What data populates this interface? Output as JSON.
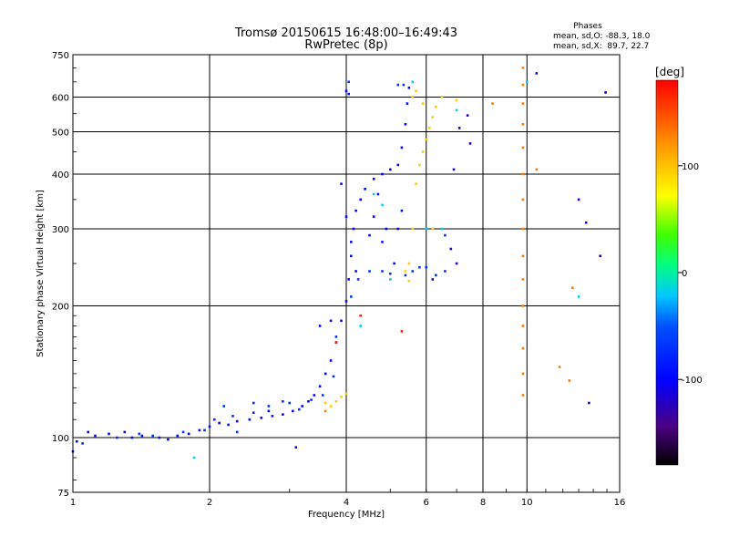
{
  "chart_data": {
    "type": "scatter",
    "title": "Tromsø 20150615 16:48:00–16:49:43",
    "subtitle": "RwPretec (8p)",
    "xlabel": "Frequency [MHz]",
    "ylabel": "Stationary phase Virtual Height [km]",
    "x_scale": "log",
    "y_scale": "log",
    "xlim": [
      1,
      16
    ],
    "ylim": [
      75,
      750
    ],
    "x_ticks": [
      1,
      2,
      4,
      6,
      8,
      10,
      16
    ],
    "x_tick_labels": [
      "1",
      "2",
      "4",
      "6",
      "8",
      "10",
      "16"
    ],
    "y_ticks": [
      75,
      100,
      200,
      300,
      400,
      500,
      600,
      750
    ],
    "y_tick_labels": [
      "75",
      "100",
      "200",
      "300",
      "400",
      "500",
      "600",
      "750"
    ],
    "grid": true,
    "stats": {
      "heading": "Phases",
      "line1": "mean, sd,O: -88.3, 18.0",
      "line2": "mean, sd,X:  89.7, 22.7"
    },
    "colorbar": {
      "label": "[deg]",
      "range": [
        -180,
        180
      ],
      "ticks": [
        100,
        0,
        -100
      ],
      "tick_labels": [
        "100",
        "0",
        "-100"
      ]
    },
    "series": [
      {
        "phase_deg": -95,
        "points": [
          [
            1.0,
            93
          ],
          [
            1.02,
            98
          ],
          [
            1.08,
            103
          ],
          [
            1.12,
            101
          ],
          [
            1.2,
            102
          ],
          [
            1.3,
            103
          ],
          [
            1.35,
            100
          ],
          [
            1.42,
            101
          ],
          [
            1.55,
            100
          ],
          [
            1.62,
            99
          ],
          [
            1.7,
            101
          ],
          [
            1.8,
            102
          ],
          [
            1.9,
            104
          ],
          [
            2.0,
            106
          ],
          [
            2.1,
            108
          ],
          [
            2.2,
            107
          ],
          [
            2.3,
            109
          ],
          [
            2.45,
            110
          ],
          [
            2.6,
            111
          ],
          [
            2.75,
            112
          ],
          [
            2.9,
            113
          ],
          [
            3.05,
            115
          ],
          [
            3.2,
            118
          ],
          [
            3.3,
            121
          ],
          [
            3.4,
            125
          ],
          [
            3.5,
            131
          ],
          [
            3.6,
            140
          ],
          [
            3.7,
            150
          ],
          [
            3.8,
            165
          ],
          [
            3.9,
            185
          ],
          [
            4.0,
            205
          ],
          [
            4.05,
            230
          ],
          [
            4.1,
            260
          ],
          [
            4.15,
            300
          ],
          [
            4.2,
            330
          ],
          [
            4.3,
            350
          ],
          [
            4.4,
            370
          ],
          [
            4.6,
            390
          ],
          [
            4.8,
            400
          ],
          [
            5.0,
            410
          ],
          [
            5.2,
            420
          ],
          [
            5.3,
            460
          ],
          [
            5.4,
            520
          ],
          [
            5.45,
            580
          ],
          [
            5.5,
            630
          ],
          [
            4.0,
            620
          ],
          [
            4.05,
            610
          ],
          [
            3.9,
            380
          ],
          [
            4.0,
            320
          ],
          [
            4.1,
            280
          ],
          [
            4.2,
            240
          ],
          [
            4.5,
            290
          ],
          [
            4.6,
            320
          ],
          [
            4.7,
            360
          ],
          [
            4.8,
            280
          ],
          [
            4.9,
            300
          ],
          [
            5.1,
            250
          ],
          [
            5.2,
            300
          ],
          [
            5.3,
            330
          ],
          [
            3.5,
            180
          ],
          [
            3.7,
            185
          ],
          [
            2.7,
            115
          ],
          [
            3.1,
            95
          ]
        ]
      },
      {
        "phase_deg": -70,
        "points": [
          [
            1.05,
            97
          ],
          [
            1.25,
            100
          ],
          [
            1.5,
            101
          ],
          [
            1.75,
            103
          ],
          [
            1.95,
            104
          ],
          [
            2.05,
            110
          ],
          [
            2.15,
            118
          ],
          [
            2.25,
            112
          ],
          [
            2.5,
            114
          ],
          [
            2.7,
            118
          ],
          [
            2.9,
            121
          ],
          [
            3.0,
            120
          ],
          [
            3.15,
            116
          ],
          [
            3.35,
            122
          ],
          [
            3.55,
            125
          ],
          [
            3.75,
            138
          ],
          [
            4.1,
            210
          ],
          [
            4.25,
            230
          ],
          [
            4.5,
            240
          ],
          [
            4.8,
            240
          ],
          [
            5.0,
            237
          ],
          [
            5.4,
            235
          ],
          [
            5.6,
            240
          ],
          [
            5.8,
            245
          ],
          [
            6.0,
            245
          ],
          [
            6.3,
            235
          ],
          [
            6.6,
            240
          ],
          [
            1.4,
            102
          ],
          [
            2.3,
            103
          ],
          [
            2.5,
            120
          ],
          [
            3.8,
            170
          ],
          [
            4.05,
            650
          ],
          [
            5.2,
            640
          ],
          [
            5.35,
            640
          ],
          [
            6.6,
            290
          ]
        ]
      },
      {
        "phase_deg": -20,
        "points": [
          [
            1.85,
            90
          ],
          [
            4.6,
            360
          ],
          [
            4.8,
            340
          ],
          [
            5.6,
            650
          ],
          [
            6.0,
            300
          ],
          [
            6.5,
            300
          ],
          [
            5.0,
            230
          ],
          [
            4.3,
            180
          ],
          [
            7.0,
            560
          ],
          [
            10.0,
            650
          ],
          [
            13.0,
            210
          ]
        ]
      },
      {
        "phase_deg": 95,
        "points": [
          [
            3.6,
            120
          ],
          [
            3.7,
            118
          ],
          [
            3.8,
            121
          ],
          [
            3.9,
            124
          ],
          [
            4.0,
            126
          ],
          [
            5.5,
            250
          ],
          [
            5.6,
            300
          ],
          [
            5.7,
            380
          ],
          [
            5.8,
            420
          ],
          [
            5.9,
            450
          ],
          [
            6.0,
            480
          ],
          [
            6.1,
            510
          ],
          [
            6.2,
            540
          ],
          [
            6.3,
            570
          ],
          [
            5.6,
            600
          ],
          [
            5.7,
            620
          ],
          [
            5.9,
            580
          ],
          [
            6.2,
            300
          ],
          [
            6.5,
            600
          ],
          [
            7.0,
            590
          ],
          [
            5.4,
            240
          ],
          [
            5.5,
            228
          ]
        ]
      },
      {
        "phase_deg": 130,
        "points": [
          [
            9.8,
            700
          ],
          [
            9.8,
            640
          ],
          [
            9.8,
            580
          ],
          [
            9.8,
            520
          ],
          [
            9.8,
            460
          ],
          [
            9.8,
            400
          ],
          [
            9.8,
            350
          ],
          [
            9.8,
            300
          ],
          [
            9.8,
            260
          ],
          [
            9.8,
            230
          ],
          [
            9.8,
            200
          ],
          [
            9.8,
            180
          ],
          [
            9.8,
            160
          ],
          [
            9.8,
            140
          ],
          [
            9.8,
            125
          ],
          [
            8.4,
            580
          ],
          [
            10.5,
            410
          ],
          [
            11.8,
            145
          ],
          [
            12.6,
            220
          ],
          [
            12.4,
            135
          ],
          [
            3.6,
            115
          ]
        ]
      },
      {
        "phase_deg": 170,
        "points": [
          [
            4.3,
            190
          ],
          [
            5.3,
            175
          ],
          [
            3.8,
            165
          ]
        ]
      },
      {
        "phase_deg": -115,
        "points": [
          [
            10.5,
            680
          ],
          [
            14.5,
            260
          ],
          [
            14.9,
            615
          ],
          [
            13.0,
            350
          ],
          [
            13.5,
            310
          ],
          [
            13.7,
            120
          ],
          [
            7.5,
            470
          ],
          [
            7.1,
            510
          ],
          [
            7.4,
            545
          ],
          [
            6.8,
            270
          ],
          [
            6.2,
            230
          ],
          [
            7.0,
            250
          ],
          [
            6.9,
            410
          ]
        ]
      }
    ]
  }
}
